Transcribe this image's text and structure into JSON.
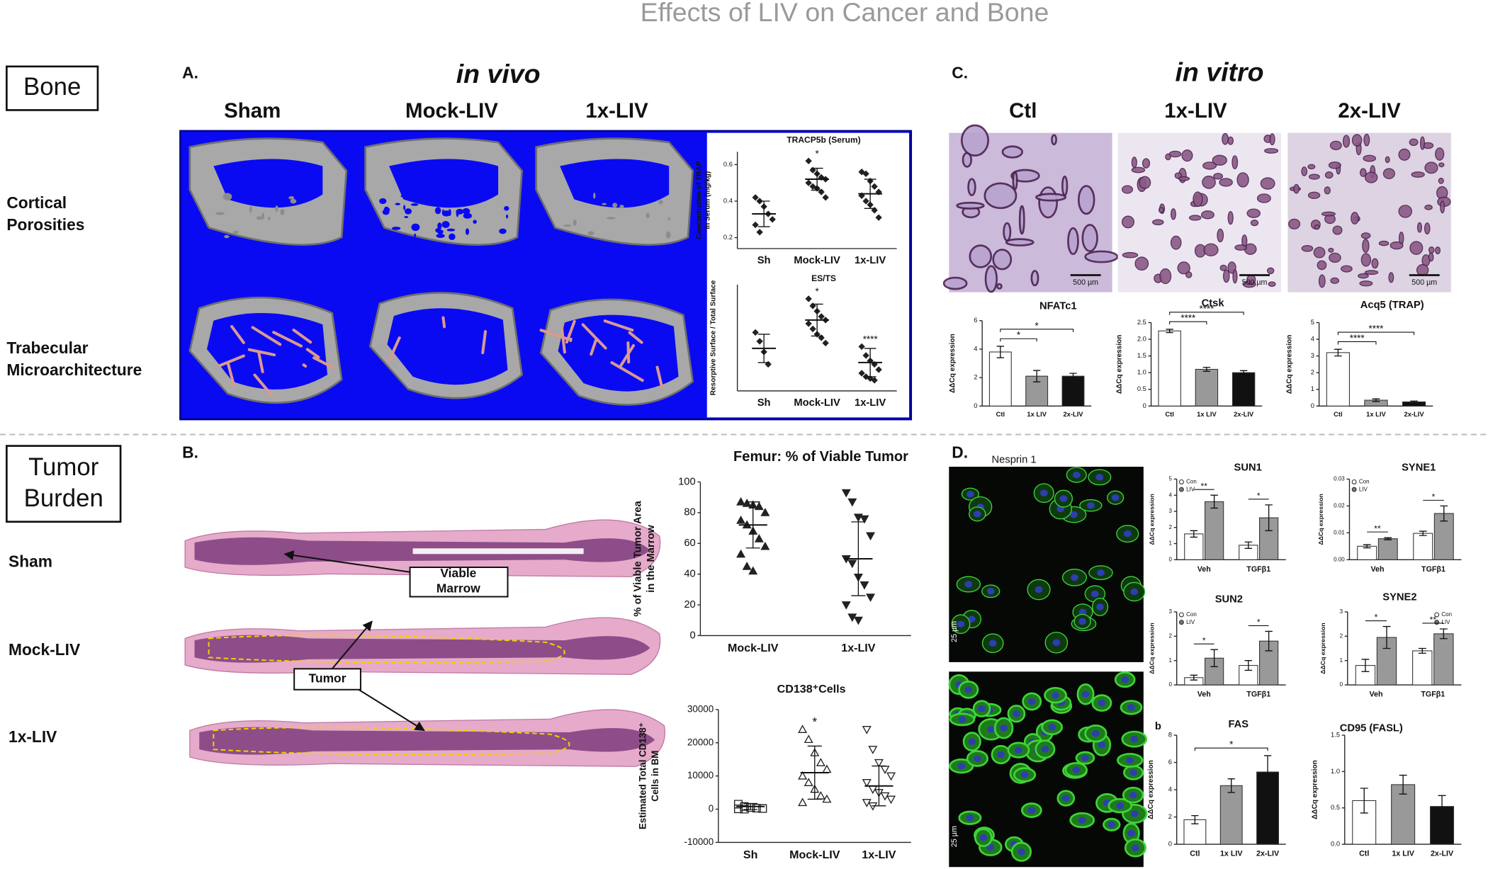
{
  "title": "Effects of LIV on Cancer and Bone",
  "section_labels": [
    [
      "Bone"
    ],
    [
      "Tumor",
      "Burden"
    ]
  ],
  "panel_a": {
    "letter": "A.",
    "heading": "in vivo",
    "columns": [
      "Sham",
      "Mock-LIV",
      "1x-LIV"
    ],
    "rows": [
      [
        "Cortical",
        "Porosities"
      ],
      [
        "Trabecular",
        "Microarchitecture"
      ]
    ]
  },
  "panel_b": {
    "letter": "B.",
    "rows": [
      "Sham",
      "Mock-LIV",
      "1x-LIV"
    ],
    "callouts": [
      [
        "Viable",
        "Marrow"
      ],
      "Tumor"
    ]
  },
  "panel_c": {
    "letter": "C.",
    "heading": "in vitro",
    "columns": [
      "Ctl",
      "1x-LIV",
      "2x-LIV"
    ],
    "scale_bars": [
      "500 µm",
      "500 µm",
      "500 µm"
    ]
  },
  "panel_d": {
    "letter": "D.",
    "image_label": "Nesprin 1",
    "scale_bars": [
      "25 µm",
      "25 µm"
    ],
    "sub_letter": "b"
  },
  "chart_data": [
    {
      "type": "dotplot",
      "title": "TRACP5b (Serum)",
      "ylabel": [
        "Concentration of TRAP",
        "in Serum (mg/kg)"
      ],
      "categories": [
        "Sh",
        "Mock-LIV",
        "1x-LIV"
      ],
      "points": [
        [
          0.42,
          0.4,
          0.37,
          0.33,
          0.3,
          0.27,
          0.23
        ],
        [
          0.62,
          0.57,
          0.55,
          0.53,
          0.52,
          0.5,
          0.48,
          0.47,
          0.45,
          0.42
        ],
        [
          0.56,
          0.55,
          0.51,
          0.48,
          0.45,
          0.43,
          0.4,
          0.38,
          0.35,
          0.31
        ]
      ],
      "values": [
        0.33,
        0.52,
        0.44
      ],
      "errors": [
        0.07,
        0.06,
        0.08
      ],
      "markers": [
        "diamond",
        "diamond",
        "diamond"
      ],
      "marker_fill": [
        "#222222",
        "#222222",
        "#222222"
      ],
      "ylim": [
        0.14,
        0.67
      ],
      "yticks": [
        0.2,
        0.4,
        0.6
      ],
      "annotations": [
        "*"
      ]
    },
    {
      "type": "dotplot",
      "title": "ES/TS",
      "ylabel": [
        "Resorptive Surface / Total Surface"
      ],
      "categories": [
        "Sh",
        "Mock-LIV",
        "1x-LIV"
      ],
      "points": [
        [
          33,
          28,
          22,
          15
        ],
        [
          52,
          48,
          45,
          42,
          40,
          38,
          35,
          32,
          30,
          27
        ],
        [
          25,
          20,
          17,
          15,
          12,
          10,
          8,
          7,
          6
        ]
      ],
      "values": [
        24,
        40,
        16
      ],
      "errors": [
        8,
        9,
        8
      ],
      "markers": [
        "diamond",
        "diamond",
        "diamond"
      ],
      "marker_fill": [
        "#222222",
        "#222222",
        "#222222"
      ],
      "ylim": [
        0,
        60
      ],
      "annotations": [
        "*",
        "****"
      ]
    },
    {
      "type": "bar",
      "title": "NFATc1",
      "ylabel": [
        "ΔΔCq expression"
      ],
      "categories": [
        "Ctl",
        "1x LIV",
        "2x-LIV"
      ],
      "values": [
        3.8,
        2.1,
        2.1
      ],
      "errors": [
        0.4,
        0.4,
        0.2
      ],
      "colors": [
        "#ffffff",
        "#999999",
        "#111111"
      ],
      "ylim": [
        0,
        6
      ],
      "yticks": [
        0,
        2,
        4,
        6
      ],
      "annotations": [
        "*",
        "*"
      ]
    },
    {
      "type": "bar",
      "title": "Ctsk",
      "ylabel": [
        "ΔΔCq expression"
      ],
      "categories": [
        "Ctl",
        "1x LIV",
        "2x-LIV"
      ],
      "values": [
        2.25,
        1.1,
        1.0
      ],
      "errors": [
        0.05,
        0.06,
        0.06
      ],
      "colors": [
        "#ffffff",
        "#999999",
        "#111111"
      ],
      "ylim": [
        0,
        2.5
      ],
      "yticks": [
        0,
        0.5,
        {
          "value": 1,
          "label": "1.0"
        },
        1.5,
        {
          "value": 2,
          "label": "2.0"
        },
        2.5
      ],
      "annotations": [
        "****",
        "****"
      ]
    },
    {
      "type": "bar",
      "title": "Acq5 (TRAP)",
      "ylabel": [
        "ΔΔCq expression"
      ],
      "categories": [
        "Ctl",
        "1x LIV",
        "2x-LIV"
      ],
      "values": [
        3.2,
        0.35,
        0.25
      ],
      "errors": [
        0.2,
        0.08,
        0.05
      ],
      "colors": [
        "#ffffff",
        "#999999",
        "#111111"
      ],
      "ylim": [
        0,
        5
      ],
      "yticks": [
        0,
        1,
        2,
        3,
        4,
        5
      ],
      "annotations": [
        "****",
        "****"
      ]
    },
    {
      "type": "dotplot",
      "title": "Femur: % of Viable Tumor",
      "ylabel": [
        "% of Viable Tumor Area",
        "in the Marrow"
      ],
      "categories": [
        "Mock-LIV",
        "1x-LIV"
      ],
      "points": [
        [
          87,
          86,
          85,
          84,
          80,
          75,
          72,
          68,
          63,
          58,
          53,
          45,
          42
        ],
        [
          93,
          87,
          77,
          76,
          65,
          50,
          47,
          38,
          33,
          25,
          20,
          12,
          10
        ]
      ],
      "values": [
        72,
        50
      ],
      "errors": [
        15,
        24
      ],
      "markers": [
        "triangle",
        "triangle-down"
      ],
      "marker_fill": [
        "#222222",
        "#222222"
      ],
      "ylim": [
        0,
        100
      ],
      "yticks": [
        0,
        20,
        40,
        60,
        80,
        100
      ]
    },
    {
      "type": "dotplot",
      "title": "CD138⁺Cells",
      "ylabel": [
        "Estimated Total CD138⁺",
        "Cells in BM"
      ],
      "categories": [
        "Sh",
        "Mock-LIV",
        "1x-LIV"
      ],
      "points": [
        [
          1500,
          800,
          500,
          300,
          200,
          100,
          0
        ],
        [
          24000,
          21000,
          17000,
          14000,
          12000,
          10000,
          8000,
          6000,
          4000,
          3000,
          2000
        ],
        [
          24000,
          18000,
          14000,
          12000,
          10000,
          8000,
          6000,
          5000,
          4000,
          3000,
          2000,
          1000
        ]
      ],
      "values": [
        800,
        11000,
        7000
      ],
      "errors": [
        900,
        8000,
        6000
      ],
      "markers": [
        "square",
        "triangle",
        "triangle-down"
      ],
      "marker_fill": [
        "none",
        "none",
        "none"
      ],
      "ylim": [
        -10000,
        30000
      ],
      "yticks": [
        -10000,
        0,
        10000,
        20000,
        30000
      ],
      "annotations": [
        "*"
      ]
    },
    {
      "type": "bar",
      "title": "SUN1",
      "ylabel": [
        "ΔΔCq expression"
      ],
      "categories": [
        "Veh",
        "TGFβ1"
      ],
      "legend": "top-left",
      "series": [
        {
          "name": "Con",
          "color": "#ffffff",
          "values": [
            1.6,
            0.9
          ],
          "errors": [
            0.2,
            0.2
          ]
        },
        {
          "name": "LIV",
          "color": "#999999",
          "values": [
            3.6,
            2.6
          ],
          "errors": [
            0.4,
            0.8
          ]
        }
      ],
      "ylim": [
        0,
        5
      ],
      "yticks": [
        0,
        1,
        2,
        3,
        4,
        5
      ],
      "annotations": [
        "**",
        "*"
      ]
    },
    {
      "type": "bar",
      "title": "SYNE1",
      "ylabel": [
        "ΔΔCq expression"
      ],
      "categories": [
        "Veh",
        "TGFβ1"
      ],
      "legend": "top-left",
      "series": [
        {
          "name": "Con",
          "color": "#ffffff",
          "values": [
            0.005,
            0.0098
          ],
          "errors": [
            0.0006,
            0.0008
          ]
        },
        {
          "name": "LIV",
          "color": "#999999",
          "values": [
            0.0078,
            0.0172
          ],
          "errors": [
            0.0004,
            0.0028
          ]
        }
      ],
      "ylim": [
        0,
        0.03
      ],
      "yticks": [
        {
          "value": 0,
          "label": "0.00"
        },
        0.01,
        0.02,
        0.03
      ],
      "annotations": [
        "**",
        "*"
      ]
    },
    {
      "type": "bar",
      "title": "SUN2",
      "ylabel": [
        "ΔΔCq expression"
      ],
      "categories": [
        "Veh",
        "TGFβ1"
      ],
      "legend": "top-left",
      "series": [
        {
          "name": "Con",
          "color": "#ffffff",
          "values": [
            0.3,
            0.8
          ],
          "errors": [
            0.1,
            0.2
          ]
        },
        {
          "name": "LIV",
          "color": "#999999",
          "values": [
            1.1,
            1.8
          ],
          "errors": [
            0.35,
            0.4
          ]
        }
      ],
      "ylim": [
        0,
        3
      ],
      "yticks": [
        0,
        1,
        2,
        3
      ],
      "annotations": [
        "*",
        "*"
      ]
    },
    {
      "type": "bar",
      "title": "SYNE2",
      "ylabel": [
        "ΔΔCq expression"
      ],
      "categories": [
        "Veh",
        "TGFβ1"
      ],
      "legend": "top-right",
      "series": [
        {
          "name": "Con",
          "color": "#ffffff",
          "values": [
            0.8,
            1.4
          ],
          "errors": [
            0.25,
            0.1
          ]
        },
        {
          "name": "LIV",
          "color": "#999999",
          "values": [
            1.95,
            2.1
          ],
          "errors": [
            0.45,
            0.2
          ]
        }
      ],
      "ylim": [
        0,
        3
      ],
      "yticks": [
        0,
        1,
        2,
        3
      ],
      "annotations": [
        "*",
        "**"
      ]
    },
    {
      "type": "bar",
      "title": "FAS",
      "ylabel": [
        "ΔΔCq expression"
      ],
      "categories": [
        "Ctl",
        "1x LIV",
        "2x-LIV"
      ],
      "values": [
        1.8,
        4.3,
        5.3
      ],
      "errors": [
        0.3,
        0.5,
        1.2
      ],
      "colors": [
        "#ffffff",
        "#999999",
        "#111111"
      ],
      "ylim": [
        0,
        8
      ],
      "yticks": [
        0,
        2,
        4,
        6,
        8
      ],
      "annotations": [
        "*"
      ]
    },
    {
      "type": "bar",
      "title": "CD95 (FASL)",
      "ylabel": [
        "ΔΔCq expression"
      ],
      "categories": [
        "Ctl",
        "1x LIV",
        "2x-LIV"
      ],
      "values": [
        0.6,
        0.82,
        0.52
      ],
      "errors": [
        0.17,
        0.13,
        0.15
      ],
      "colors": [
        "#ffffff",
        "#999999",
        "#111111"
      ],
      "ylim": [
        0,
        1.5
      ],
      "yticks": [
        {
          "value": 0,
          "label": "0.0"
        },
        0.5,
        {
          "value": 1,
          "label": "1.0"
        },
        1.5
      ]
    }
  ]
}
